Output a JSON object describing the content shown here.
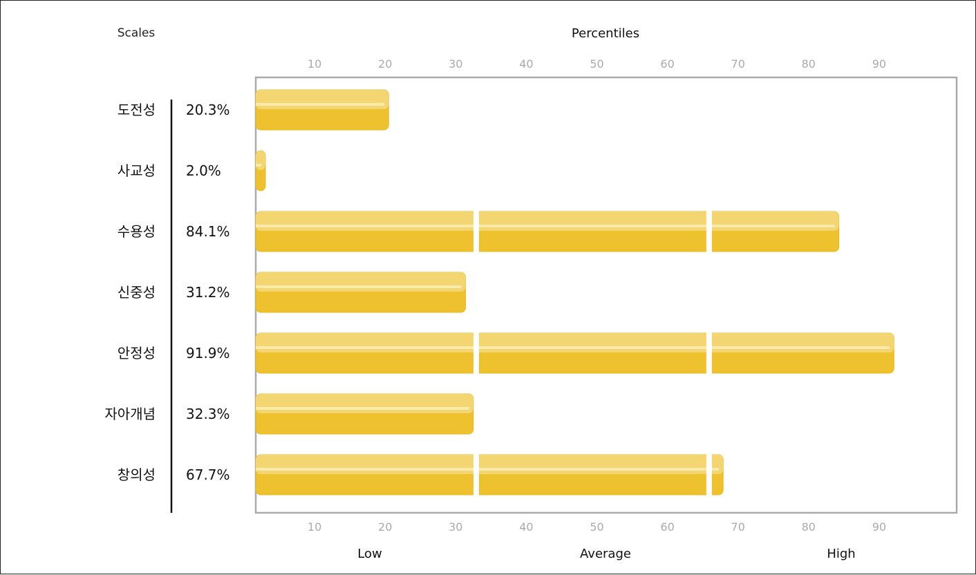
{
  "chart_data": {
    "type": "bar",
    "orientation": "horizontal",
    "scales_header": "Scales",
    "axis_title": "Percentiles",
    "xlim": [
      0,
      100
    ],
    "ticks": [
      10,
      20,
      30,
      40,
      50,
      60,
      70,
      80,
      90
    ],
    "tick_labels": [
      "10",
      "20",
      "30",
      "40",
      "50",
      "60",
      "70",
      "80",
      "90"
    ],
    "band_dividers": [
      33,
      66
    ],
    "bands": [
      "Low",
      "Average",
      "High"
    ],
    "categories": [
      "도전성",
      "사교성",
      "수용성",
      "신중성",
      "안정성",
      "자아개념",
      "창의성"
    ],
    "values": [
      20.3,
      2.0,
      84.1,
      31.2,
      91.9,
      32.3,
      67.7
    ],
    "value_labels": [
      "20.3%",
      "2.0%",
      "84.1%",
      "31.2%",
      "91.9%",
      "32.3%",
      "67.7%"
    ],
    "grid": false,
    "colors": {
      "bar_light": "#f3d572",
      "bar_dark": "#edc22e",
      "bar_highlight": "#fbeaa8",
      "bar_edge": "#e8b824",
      "axis_frame": "#aaaaaa",
      "tick_text": "#aaaaaa"
    }
  }
}
